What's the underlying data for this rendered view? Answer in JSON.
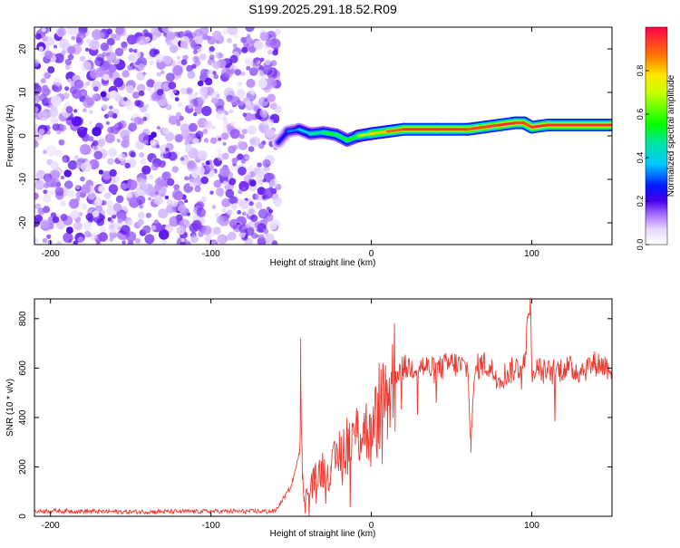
{
  "title": "S199.2025.291.18.52.R09",
  "chart_data": [
    {
      "type": "heatmap",
      "xlabel": "Height of straight line (km)",
      "ylabel": "Frequency (Hz)",
      "xlim": [
        -210,
        150
      ],
      "ylim": [
        -25,
        25
      ],
      "xticks": [
        -200,
        -100,
        0,
        100
      ],
      "yticks": [
        -20,
        -10,
        0,
        10,
        20
      ],
      "colorbar": {
        "label": "Normalized spectral amplitude",
        "range": [
          0,
          1
        ],
        "ticks": [
          0.0,
          0.2,
          0.4,
          0.6,
          0.8
        ]
      },
      "noise_region": {
        "x_from": -210,
        "x_to": -58,
        "f_from": -25,
        "f_to": 25,
        "amplitude_range": [
          0.05,
          0.2
        ]
      },
      "signal_trace": {
        "x": [
          -58,
          -52,
          -45,
          -38,
          -30,
          -22,
          -15,
          -8,
          0,
          10,
          20,
          40,
          60,
          70,
          80,
          90,
          95,
          100,
          110,
          120,
          150
        ],
        "freq": [
          -1.5,
          1.0,
          1.5,
          0.5,
          0.8,
          0.3,
          -1.0,
          0.0,
          0.5,
          1.0,
          1.5,
          1.5,
          1.5,
          2.0,
          2.5,
          3.0,
          3.0,
          2.0,
          2.5,
          2.5,
          2.5
        ],
        "amplitude": [
          0.2,
          0.3,
          0.35,
          0.45,
          0.5,
          0.55,
          0.5,
          0.6,
          0.75,
          0.85,
          0.95,
          0.95,
          0.95,
          0.9,
          0.95,
          0.95,
          0.9,
          0.95,
          0.95,
          0.95,
          0.95
        ]
      }
    },
    {
      "type": "line",
      "xlabel": "Height of straight line (km)",
      "ylabel": "SNR (10 * v/v)",
      "xlim": [
        -210,
        150
      ],
      "ylim": [
        0,
        880
      ],
      "xticks": [
        -200,
        -100,
        0,
        100
      ],
      "yticks": [
        0,
        200,
        400,
        600,
        800
      ],
      "series": [
        {
          "name": "SNR",
          "color": "#ee3a30",
          "x": [
            -210,
            -200,
            -150,
            -100,
            -60,
            -50,
            -45,
            -44,
            -43,
            -42,
            -40,
            -35,
            -30,
            -25,
            -20,
            -15,
            -10,
            -5,
            0,
            5,
            10,
            15,
            20,
            30,
            40,
            50,
            60,
            62,
            65,
            70,
            80,
            90,
            95,
            99,
            100,
            110,
            120,
            130,
            140,
            150
          ],
          "y": [
            20,
            22,
            18,
            20,
            20,
            120,
            250,
            720,
            150,
            60,
            100,
            150,
            200,
            180,
            260,
            300,
            320,
            380,
            300,
            450,
            500,
            580,
            600,
            610,
            590,
            620,
            600,
            310,
            600,
            620,
            560,
            600,
            610,
            880,
            600,
            580,
            600,
            590,
            620,
            600
          ]
        }
      ]
    }
  ]
}
